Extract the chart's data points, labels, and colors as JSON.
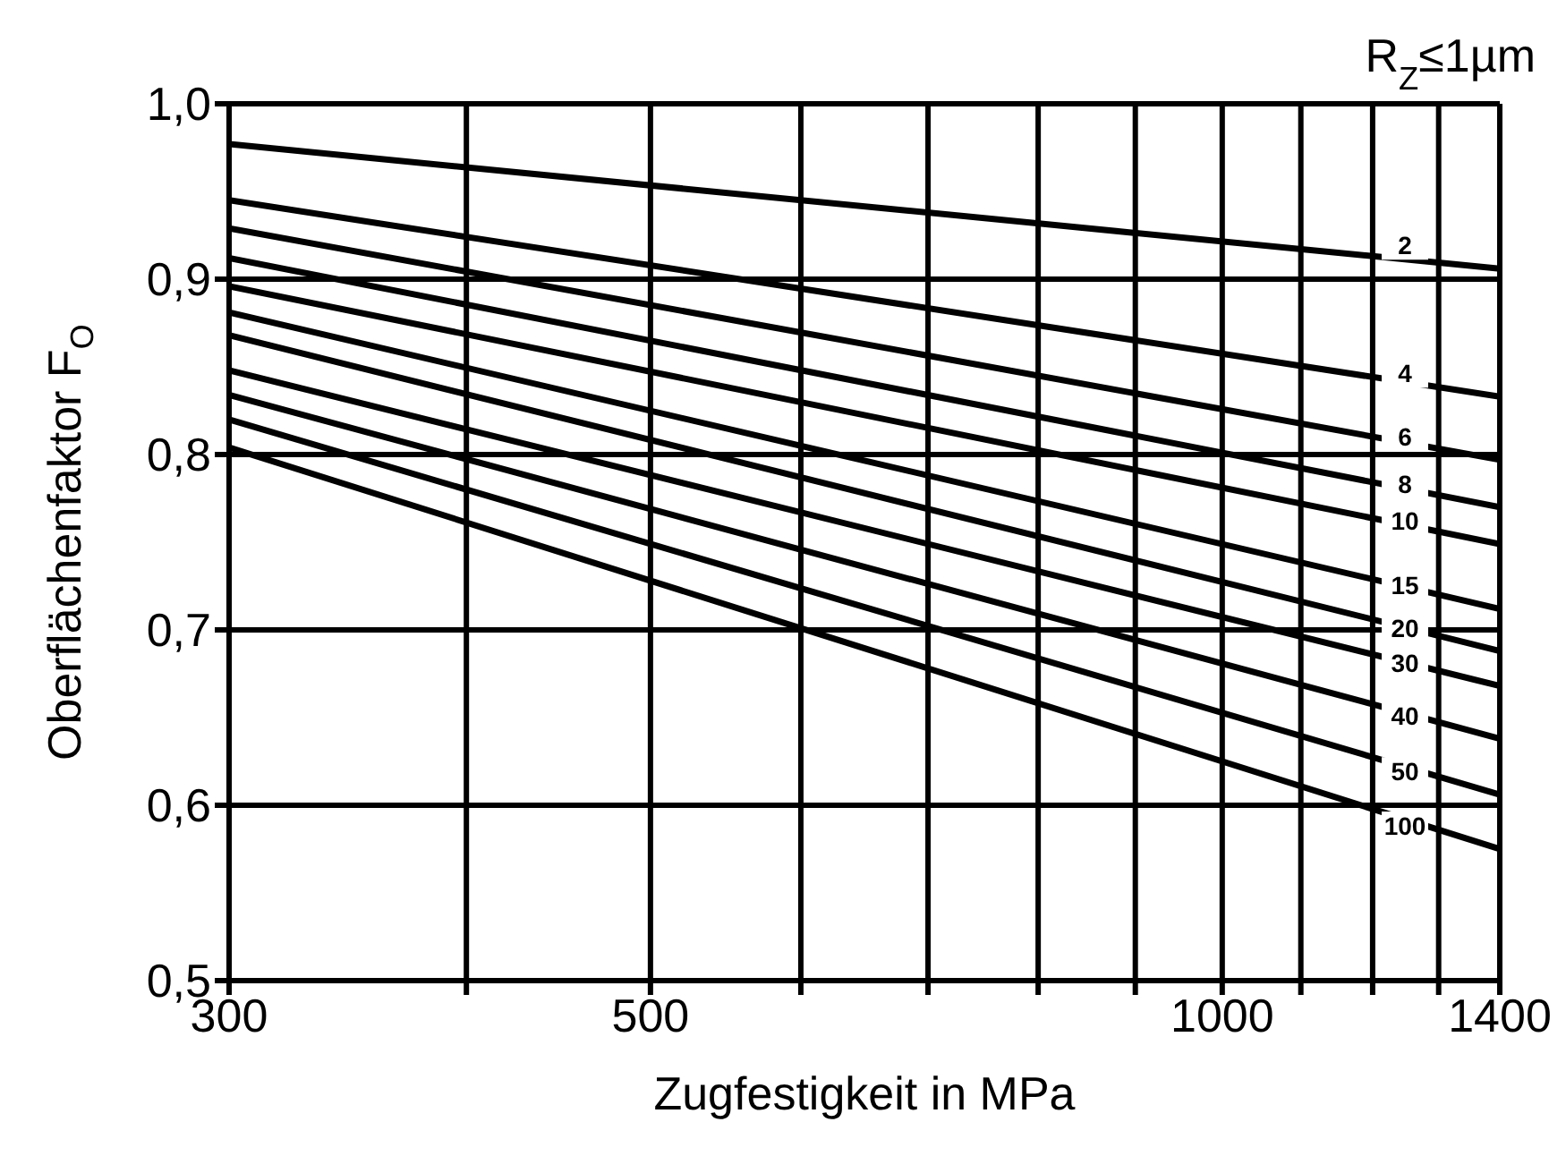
{
  "chart_data": {
    "type": "line",
    "xlabel": "Zugfestigkeit in MPa",
    "ylabel": "Oberflächenfaktor F$_{O}$",
    "annotations": [
      "R$_{Z}$≤1µm"
    ],
    "x": [
      300,
      1400
    ],
    "log": "x",
    "xlim": [
      300,
      1400
    ],
    "ylim": [
      0.5,
      1.0
    ],
    "xticks": [
      300,
      {
        "value": 400,
        "label": null
      },
      500,
      {
        "value": 600,
        "label": null
      },
      {
        "value": 700,
        "label": null
      },
      {
        "value": 800,
        "label": null
      },
      {
        "value": 900,
        "label": null
      },
      1000,
      {
        "value": 1100,
        "label": null
      },
      {
        "value": 1200,
        "label": null
      },
      {
        "value": 1300,
        "label": null
      },
      1400
    ],
    "yticks": [
      {
        "value": 0.5,
        "label": "0,5"
      },
      {
        "value": 0.6,
        "label": "0,6"
      },
      {
        "value": 0.7,
        "label": "0,7"
      },
      {
        "value": 0.8,
        "label": "0,8"
      },
      {
        "value": 0.9,
        "label": "0,9"
      },
      {
        "value": 1.0,
        "label": "1,0"
      }
    ],
    "grid": true,
    "legend": false,
    "marker": "none",
    "line_style": "solid",
    "series": [
      {
        "name": "2",
        "color": "#000000",
        "values": [
          0.977,
          0.906
        ]
      },
      {
        "name": "4",
        "color": "#000000",
        "values": [
          0.945,
          0.833
        ]
      },
      {
        "name": "6",
        "color": "#000000",
        "values": [
          0.929,
          0.797
        ]
      },
      {
        "name": "8",
        "color": "#000000",
        "values": [
          0.912,
          0.77
        ]
      },
      {
        "name": "10",
        "color": "#000000",
        "values": [
          0.896,
          0.749
        ]
      },
      {
        "name": "15",
        "color": "#000000",
        "values": [
          0.881,
          0.712
        ]
      },
      {
        "name": "20",
        "color": "#000000",
        "values": [
          0.868,
          0.688
        ]
      },
      {
        "name": "30",
        "color": "#000000",
        "values": [
          0.848,
          0.668
        ]
      },
      {
        "name": "40",
        "color": "#000000",
        "values": [
          0.834,
          0.638
        ]
      },
      {
        "name": "50",
        "color": "#000000",
        "values": [
          0.82,
          0.606
        ]
      },
      {
        "name": "100",
        "color": "#000000",
        "values": [
          0.804,
          0.575
        ]
      }
    ]
  }
}
